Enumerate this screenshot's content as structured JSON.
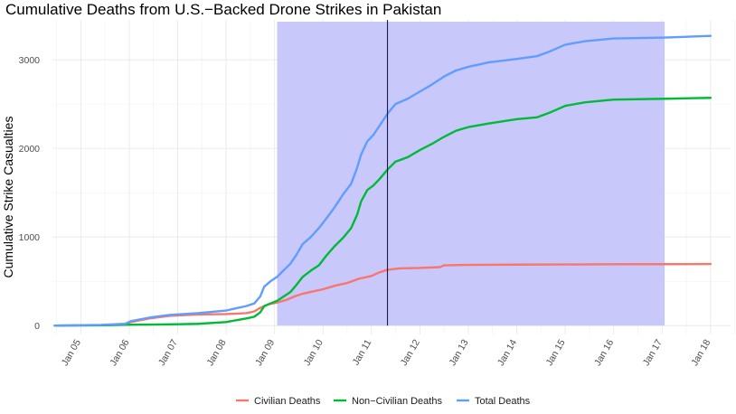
{
  "chart_data": {
    "type": "line",
    "title": "Cumulative Deaths from U.S.−Backed Drone Strikes in Pakistan",
    "xlabel": "",
    "ylabel": "Cumulative Strike Casualties",
    "x_ticks": [
      "Jan 05",
      "Jan 06",
      "Jan 07",
      "Jan 08",
      "Jan 09",
      "Jan 10",
      "Jan 11",
      "Jan 12",
      "Jan 13",
      "Jan 14",
      "Jan 15",
      "Jan 16",
      "Jan 17",
      "Jan 18"
    ],
    "x_range": [
      "2004-06-01",
      "2018-06-01"
    ],
    "y_ticks": [
      0,
      1000,
      2000,
      3000
    ],
    "ylim": [
      -100,
      3450
    ],
    "grid": true,
    "legend_position": "bottom",
    "highlight_range": {
      "start": "2009-01-20",
      "end": "2017-01-20",
      "color": "#c8c8fb"
    },
    "vline": {
      "x": "2011-05-02",
      "color": "#1a1a4a"
    },
    "series": [
      {
        "name": "Civilian Deaths",
        "color": "#f8766d",
        "points": [
          [
            "2004-06-18",
            0
          ],
          [
            "2005-06-01",
            5
          ],
          [
            "2005-12-01",
            15
          ],
          [
            "2006-01-13",
            40
          ],
          [
            "2006-06-01",
            80
          ],
          [
            "2006-10-30",
            110
          ],
          [
            "2007-06-01",
            125
          ],
          [
            "2008-01-01",
            130
          ],
          [
            "2008-06-01",
            140
          ],
          [
            "2008-08-01",
            160
          ],
          [
            "2008-09-15",
            200
          ],
          [
            "2008-11-15",
            240
          ],
          [
            "2009-01-20",
            260
          ],
          [
            "2009-04-01",
            290
          ],
          [
            "2009-06-01",
            330
          ],
          [
            "2009-08-01",
            360
          ],
          [
            "2009-10-01",
            380
          ],
          [
            "2010-01-01",
            410
          ],
          [
            "2010-04-01",
            450
          ],
          [
            "2010-07-01",
            480
          ],
          [
            "2010-10-01",
            530
          ],
          [
            "2011-01-01",
            560
          ],
          [
            "2011-03-01",
            600
          ],
          [
            "2011-05-02",
            630
          ],
          [
            "2011-08-01",
            645
          ],
          [
            "2012-01-01",
            650
          ],
          [
            "2012-06-01",
            660
          ],
          [
            "2012-07-01",
            680
          ],
          [
            "2013-01-01",
            685
          ],
          [
            "2014-01-01",
            688
          ],
          [
            "2015-01-01",
            690
          ],
          [
            "2016-01-01",
            692
          ],
          [
            "2017-01-20",
            693
          ],
          [
            "2018-01-01",
            695
          ]
        ]
      },
      {
        "name": "Non−Civilian Deaths",
        "color": "#00ba38",
        "points": [
          [
            "2004-06-18",
            0
          ],
          [
            "2005-06-01",
            3
          ],
          [
            "2006-01-13",
            10
          ],
          [
            "2006-06-01",
            12
          ],
          [
            "2007-01-01",
            15
          ],
          [
            "2007-06-01",
            20
          ],
          [
            "2008-01-01",
            40
          ],
          [
            "2008-06-01",
            80
          ],
          [
            "2008-08-01",
            100
          ],
          [
            "2008-09-15",
            150
          ],
          [
            "2008-10-15",
            220
          ],
          [
            "2008-12-01",
            250
          ],
          [
            "2009-01-20",
            280
          ],
          [
            "2009-03-01",
            320
          ],
          [
            "2009-05-01",
            380
          ],
          [
            "2009-06-15",
            460
          ],
          [
            "2009-08-01",
            550
          ],
          [
            "2009-10-01",
            620
          ],
          [
            "2009-12-01",
            680
          ],
          [
            "2010-02-01",
            800
          ],
          [
            "2010-04-01",
            900
          ],
          [
            "2010-06-01",
            990
          ],
          [
            "2010-08-01",
            1100
          ],
          [
            "2010-09-15",
            1250
          ],
          [
            "2010-10-15",
            1400
          ],
          [
            "2010-12-01",
            1530
          ],
          [
            "2011-01-15",
            1580
          ],
          [
            "2011-03-01",
            1650
          ],
          [
            "2011-05-02",
            1760
          ],
          [
            "2011-07-01",
            1850
          ],
          [
            "2011-10-01",
            1900
          ],
          [
            "2012-01-01",
            1980
          ],
          [
            "2012-04-01",
            2050
          ],
          [
            "2012-07-01",
            2130
          ],
          [
            "2012-10-01",
            2200
          ],
          [
            "2013-01-01",
            2240
          ],
          [
            "2013-06-01",
            2280
          ],
          [
            "2014-01-01",
            2330
          ],
          [
            "2014-06-01",
            2350
          ],
          [
            "2014-09-01",
            2400
          ],
          [
            "2015-01-01",
            2480
          ],
          [
            "2015-06-01",
            2520
          ],
          [
            "2016-01-01",
            2550
          ],
          [
            "2017-01-20",
            2560
          ],
          [
            "2018-01-01",
            2570
          ]
        ]
      },
      {
        "name": "Total Deaths",
        "color": "#619cff",
        "points": [
          [
            "2004-06-18",
            0
          ],
          [
            "2005-06-01",
            8
          ],
          [
            "2005-12-01",
            20
          ],
          [
            "2006-01-13",
            50
          ],
          [
            "2006-06-01",
            90
          ],
          [
            "2006-10-30",
            120
          ],
          [
            "2007-06-01",
            140
          ],
          [
            "2008-01-01",
            170
          ],
          [
            "2008-06-01",
            220
          ],
          [
            "2008-08-01",
            250
          ],
          [
            "2008-09-15",
            330
          ],
          [
            "2008-10-15",
            440
          ],
          [
            "2008-12-01",
            500
          ],
          [
            "2009-01-20",
            550
          ],
          [
            "2009-03-01",
            610
          ],
          [
            "2009-05-01",
            700
          ],
          [
            "2009-06-15",
            800
          ],
          [
            "2009-08-01",
            920
          ],
          [
            "2009-10-01",
            1000
          ],
          [
            "2009-12-01",
            1100
          ],
          [
            "2010-02-01",
            1220
          ],
          [
            "2010-04-01",
            1340
          ],
          [
            "2010-06-01",
            1480
          ],
          [
            "2010-08-01",
            1600
          ],
          [
            "2010-09-15",
            1780
          ],
          [
            "2010-10-15",
            1930
          ],
          [
            "2010-12-01",
            2080
          ],
          [
            "2011-01-15",
            2150
          ],
          [
            "2011-03-01",
            2250
          ],
          [
            "2011-05-02",
            2390
          ],
          [
            "2011-07-01",
            2500
          ],
          [
            "2011-10-01",
            2560
          ],
          [
            "2012-01-01",
            2640
          ],
          [
            "2012-04-01",
            2720
          ],
          [
            "2012-07-01",
            2810
          ],
          [
            "2012-10-01",
            2880
          ],
          [
            "2013-01-01",
            2920
          ],
          [
            "2013-06-01",
            2970
          ],
          [
            "2014-01-01",
            3010
          ],
          [
            "2014-06-01",
            3040
          ],
          [
            "2014-09-01",
            3090
          ],
          [
            "2015-01-01",
            3170
          ],
          [
            "2015-06-01",
            3210
          ],
          [
            "2016-01-01",
            3240
          ],
          [
            "2017-01-20",
            3250
          ],
          [
            "2018-01-01",
            3270
          ]
        ]
      }
    ]
  }
}
